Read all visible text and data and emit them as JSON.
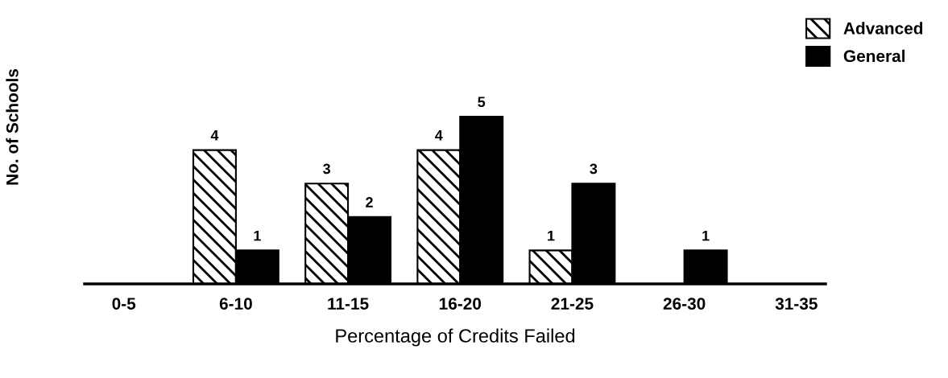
{
  "chart_data": {
    "type": "bar",
    "xlabel": "Percentage of Credits Failed",
    "ylabel": "No. of Schools",
    "categories": [
      "0-5",
      "6-10",
      "11-15",
      "16-20",
      "21-25",
      "26-30",
      "31-35"
    ],
    "series": [
      {
        "name": "Advanced",
        "color": "#000000",
        "values": [
          0,
          4,
          3,
          4,
          1,
          0,
          0
        ],
        "value_labels": [
          null,
          "4",
          "3",
          "4",
          "1",
          null,
          null
        ]
      },
      {
        "name": "General",
        "color": "#000000",
        "values": [
          0,
          1,
          2,
          5,
          3,
          1,
          0
        ],
        "value_labels": [
          null,
          "1",
          "2",
          "5",
          "3",
          "1",
          null
        ]
      }
    ],
    "legend": "top right",
    "grid": false,
    "tick_labels": "x"
  }
}
